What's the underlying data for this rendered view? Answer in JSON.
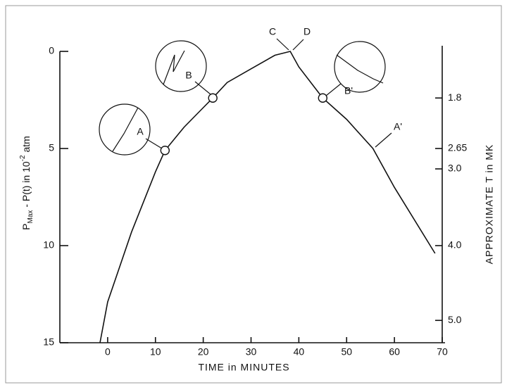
{
  "chart_data": {
    "type": "line",
    "xlabel": "TIME in MINUTES",
    "ylabel_parts": [
      "P",
      "Max",
      " - P(t) in 10",
      "-2",
      " atm"
    ],
    "y2label": "APPROXIMATE  T  in MK",
    "x": [
      -1.6,
      0,
      5,
      10,
      12,
      16,
      20,
      22,
      25,
      30,
      35,
      38.2,
      40,
      45,
      50,
      55.5,
      60,
      68.5
    ],
    "values": [
      15,
      12.9,
      9.3,
      6.2,
      5.1,
      3.9,
      2.9,
      2.4,
      1.6,
      0.9,
      0.2,
      0,
      0.8,
      2.4,
      3.5,
      5.0,
      7.0,
      10.4
    ],
    "color": "#111111",
    "xlim": [
      -10,
      70
    ],
    "xticks": [
      0,
      10,
      20,
      30,
      40,
      50,
      60,
      70
    ],
    "ylim": [
      0,
      15
    ],
    "yticks": [
      0,
      5,
      10,
      15
    ],
    "y_inverted": true,
    "y2ticks": [
      {
        "value": 1.8,
        "label": "1.8",
        "at": 2.4
      },
      {
        "value": 2.65,
        "label": "2.65",
        "at": 5.0
      },
      {
        "value": 3,
        "label": "3.0",
        "at": 6.05
      },
      {
        "value": 4,
        "label": "4.0",
        "at": 10.0
      },
      {
        "value": 5,
        "label": "5.0",
        "at": 13.85
      }
    ],
    "annotations": [
      {
        "text": "A",
        "x": 12,
        "y": 5.1,
        "marker": true
      },
      {
        "text": "B",
        "x": 22,
        "y": 2.4,
        "marker": true
      },
      {
        "text": "C",
        "x": 38.2,
        "y": 0,
        "marker": false
      },
      {
        "text": "D",
        "x": 38.2,
        "y": 0,
        "marker": false
      },
      {
        "text": "B'",
        "x": 45,
        "y": 2.4,
        "marker": true
      },
      {
        "text": "A'",
        "x": 55.5,
        "y": 5.0,
        "marker": false
      }
    ]
  }
}
